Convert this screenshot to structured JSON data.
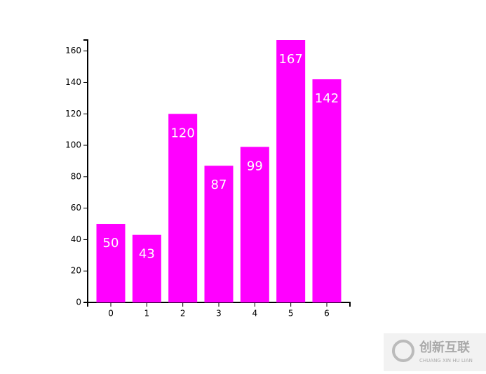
{
  "chart_data": {
    "type": "bar",
    "categories": [
      "0",
      "1",
      "2",
      "3",
      "4",
      "5",
      "6"
    ],
    "values": [
      50,
      43,
      120,
      87,
      99,
      167,
      142
    ],
    "color": "#ff00ff",
    "ylim": [
      0,
      167
    ],
    "yticks": [
      0,
      20,
      40,
      60,
      80,
      100,
      120,
      140,
      160
    ]
  },
  "watermark": {
    "title": "创新互联",
    "subtitle": "CHUANG XIN HU LIAN"
  }
}
